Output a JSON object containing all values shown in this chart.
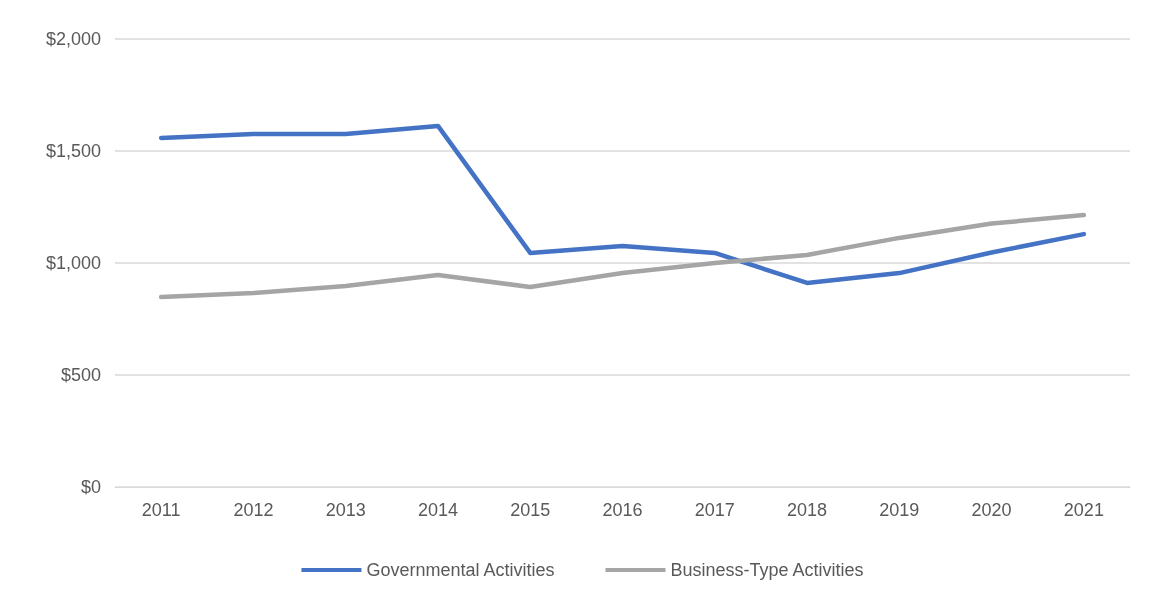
{
  "chart_data": {
    "type": "line",
    "categories": [
      "2011",
      "2012",
      "2013",
      "2014",
      "2015",
      "2016",
      "2017",
      "2018",
      "2019",
      "2020",
      "2021"
    ],
    "series": [
      {
        "name": "Governmental Activities",
        "color": "#4472c4",
        "values": [
          1558,
          1576,
          1576,
          1612,
          1045,
          1076,
          1045,
          911,
          955,
          1047,
          1129
        ]
      },
      {
        "name": "Business-Type Activities",
        "color": "#a5a5a5",
        "values": [
          848,
          866,
          897,
          946,
          893,
          955,
          1000,
          1036,
          1112,
          1176,
          1214
        ]
      }
    ],
    "ylim": [
      0,
      2000
    ],
    "yticks": [
      {
        "value": 0,
        "label": "$0"
      },
      {
        "value": 500,
        "label": "$500"
      },
      {
        "value": 1000,
        "label": "$1,000"
      },
      {
        "value": 1500,
        "label": "$1,500"
      },
      {
        "value": 2000,
        "label": "$2,000"
      }
    ],
    "grid": "y",
    "legend": "bottom",
    "marker": "none",
    "line_style": "solid"
  }
}
